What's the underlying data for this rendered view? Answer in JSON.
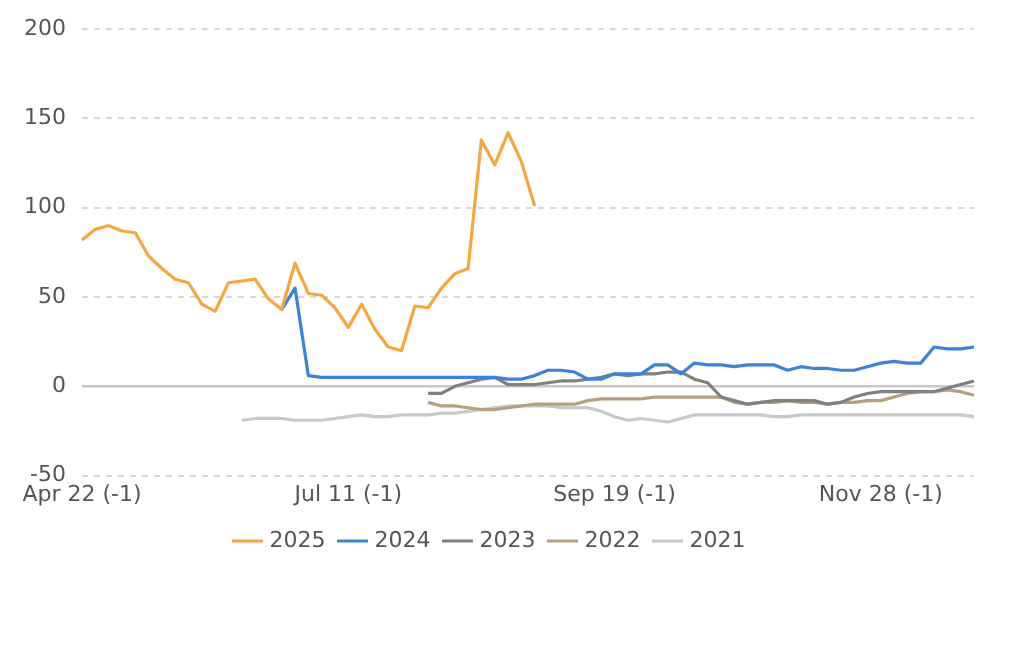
{
  "chart_data": {
    "type": "line",
    "ylim": [
      -50,
      200
    ],
    "categories": [
      "Apr 22 (-1)",
      null,
      null,
      null,
      null,
      null,
      null,
      null,
      null,
      null,
      null,
      null,
      null,
      null,
      null,
      null,
      null,
      null,
      null,
      null,
      "Jul 11 (-1)",
      null,
      null,
      null,
      null,
      null,
      null,
      null,
      null,
      null,
      null,
      null,
      null,
      null,
      null,
      null,
      null,
      null,
      null,
      null,
      "Sep 19 (-1)",
      null,
      null,
      null,
      null,
      null,
      null,
      null,
      null,
      null,
      null,
      null,
      null,
      null,
      null,
      null,
      null,
      null,
      null,
      null,
      "Nov 28 (-1)",
      null,
      null,
      null,
      null,
      null,
      null,
      null
    ],
    "yticks": [
      -50,
      0,
      50,
      100,
      150,
      200
    ],
    "grid": "y",
    "ref_lines": [
      {
        "axis": "y",
        "value": 0,
        "color": "#c8c8c8",
        "line_style": "solid"
      }
    ],
    "legend": "bottom",
    "marker": "none",
    "line_style": "solid",
    "series": [
      {
        "name": "2025",
        "color": "#f5a83a",
        "values": [
          82,
          88,
          90,
          87,
          86,
          73,
          66,
          60,
          58,
          46,
          42,
          58,
          59,
          60,
          49,
          43,
          69,
          52,
          51,
          44,
          33,
          46,
          32,
          22,
          20,
          45,
          44,
          55,
          63,
          66,
          138,
          124,
          142,
          126,
          101,
          null,
          null,
          null,
          null,
          null,
          null,
          null,
          null,
          null,
          null,
          null,
          null,
          null,
          null,
          null,
          null,
          null,
          null,
          null,
          null,
          null,
          null,
          null,
          null,
          null,
          null,
          null,
          null,
          null,
          null,
          null,
          null,
          null
        ]
      },
      {
        "name": "2024",
        "color": "#3b82e0",
        "values": [
          null,
          null,
          null,
          null,
          null,
          null,
          null,
          null,
          null,
          null,
          null,
          null,
          null,
          null,
          null,
          43,
          55,
          6,
          5,
          5,
          5,
          5,
          5,
          5,
          5,
          5,
          5,
          5,
          5,
          5,
          5,
          5,
          4,
          4,
          6,
          9,
          9,
          8,
          4,
          4,
          7,
          7,
          7,
          12,
          12,
          7,
          13,
          12,
          12,
          11,
          12,
          12,
          12,
          9,
          11,
          10,
          10,
          9,
          9,
          11,
          13,
          14,
          13,
          13,
          22,
          21,
          21,
          22
        ]
      },
      {
        "name": "2023",
        "color": "#808080",
        "values": [
          null,
          null,
          null,
          null,
          null,
          null,
          null,
          null,
          null,
          null,
          null,
          null,
          null,
          null,
          null,
          null,
          null,
          null,
          null,
          null,
          null,
          null,
          null,
          null,
          null,
          null,
          -4,
          -4,
          0,
          2,
          4,
          5,
          1,
          1,
          1,
          2,
          3,
          3,
          4,
          5,
          7,
          6,
          7,
          7,
          8,
          8,
          4,
          2,
          -6,
          -8,
          -10,
          -9,
          -8,
          -8,
          -8,
          -8,
          -10,
          -9,
          -6,
          -4,
          -3,
          -3,
          -3,
          -3,
          -3,
          -1,
          1,
          3
        ]
      },
      {
        "name": "2022",
        "color": "#b5a07a",
        "values": [
          null,
          null,
          null,
          null,
          null,
          null,
          null,
          null,
          null,
          null,
          null,
          null,
          null,
          null,
          null,
          null,
          null,
          null,
          null,
          null,
          null,
          null,
          null,
          null,
          null,
          null,
          -9,
          -11,
          -11,
          -12,
          -13,
          -13,
          -12,
          -11,
          -10,
          -10,
          -10,
          -10,
          -8,
          -7,
          -7,
          -7,
          -7,
          -6,
          -6,
          -6,
          -6,
          -6,
          -6,
          -9,
          -10,
          -9,
          -9,
          -8,
          -9,
          -9,
          -10,
          -9,
          -9,
          -8,
          -8,
          -6,
          -4,
          -3,
          -3,
          -2,
          -3,
          -5
        ]
      },
      {
        "name": "2021",
        "color": "#c8c8c8",
        "values": [
          null,
          null,
          null,
          null,
          null,
          null,
          null,
          null,
          null,
          null,
          null,
          null,
          -19,
          -18,
          -18,
          -18,
          -19,
          -19,
          -19,
          -18,
          -17,
          -16,
          -17,
          -17,
          -16,
          -16,
          -16,
          -15,
          -15,
          -14,
          -13,
          -12,
          -11,
          -11,
          -11,
          -11,
          -12,
          -12,
          -12,
          -14,
          -17,
          -19,
          -18,
          -19,
          -20,
          -18,
          -16,
          -16,
          -16,
          -16,
          -16,
          -16,
          -17,
          -17,
          -16,
          -16,
          -16,
          -16,
          -16,
          -16,
          -16,
          -16,
          -16,
          -16,
          -16,
          -16,
          -16,
          -17
        ]
      }
    ]
  }
}
